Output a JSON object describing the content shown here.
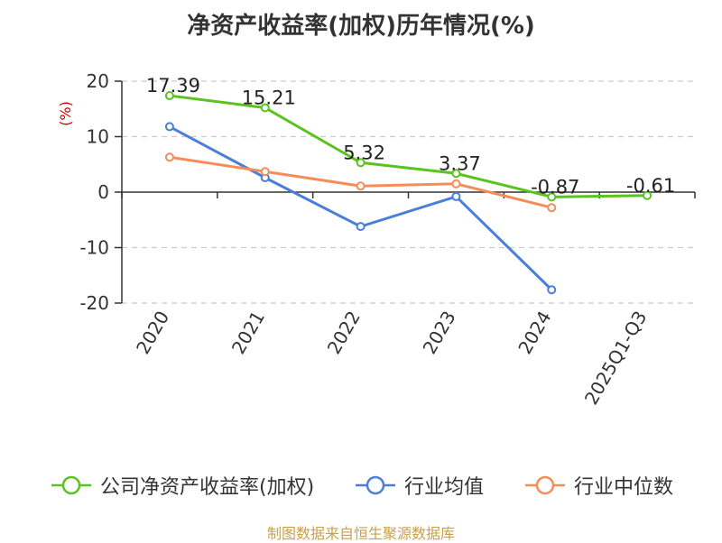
{
  "title": "净资产收益率(加权)历年情况(%)",
  "source": "制图数据来自恒生聚源数据库",
  "colors": {
    "company": "#5ac31f",
    "industry_avg": "#4a7fd8",
    "industry_median": "#f68c5a",
    "ylabel": "#cc0000",
    "source": "#c8a04a"
  },
  "chart_data": {
    "type": "line",
    "title": "净资产收益率(加权)历年情况(%)",
    "xlabel": "",
    "ylabel": "(%)",
    "ylim": [
      -20,
      20
    ],
    "yticks": [
      20,
      10,
      0,
      -10,
      -20
    ],
    "grid": true,
    "legend_position": "bottom",
    "categories": [
      "2020",
      "2021",
      "2022",
      "2023",
      "2024",
      "2025Q1-Q3"
    ],
    "series": [
      {
        "name": "公司净资产收益率(加权)",
        "color": "#5ac31f",
        "show_labels": true,
        "values": [
          17.39,
          15.21,
          5.32,
          3.37,
          -0.87,
          -0.61
        ],
        "labels": [
          "17.39",
          "15.21",
          "5.32",
          "3.37",
          "-0.87",
          "-0.61"
        ]
      },
      {
        "name": "行业均值",
        "color": "#4a7fd8",
        "show_labels": false,
        "values": [
          11.8,
          2.6,
          -6.2,
          -0.8,
          -17.6,
          null
        ]
      },
      {
        "name": "行业中位数",
        "color": "#f68c5a",
        "show_labels": false,
        "values": [
          6.3,
          3.7,
          1.1,
          1.5,
          -2.8,
          null
        ]
      }
    ]
  }
}
